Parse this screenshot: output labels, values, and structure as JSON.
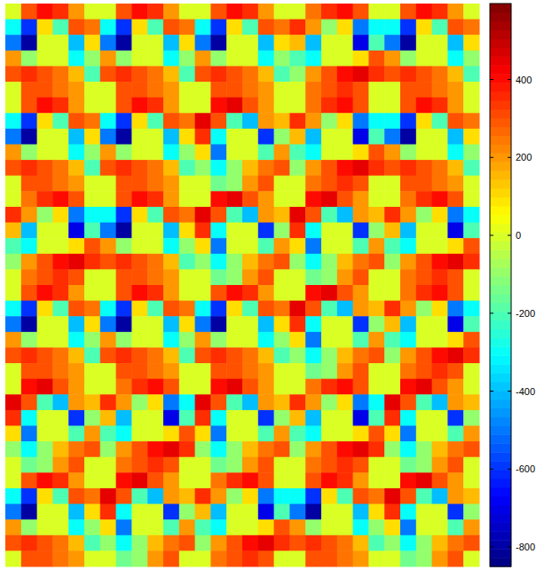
{
  "chart_data": {
    "type": "heatmap",
    "tick_labels": false,
    "cells": [
      [
        0,
        300,
        400,
        350,
        200,
        0,
        0,
        300,
        400,
        350,
        200,
        0,
        0,
        300,
        400,
        350,
        200,
        0,
        0,
        250,
        350,
        400,
        300,
        0,
        0,
        300,
        400,
        350,
        200,
        0
      ],
      [
        -300,
        -600,
        100,
        -200,
        300,
        250,
        -300,
        -600,
        100,
        -200,
        300,
        250,
        -300,
        -600,
        100,
        -200,
        300,
        250,
        350,
        200,
        -100,
        100,
        -500,
        -300,
        -300,
        -600,
        100,
        -200,
        300,
        250
      ],
      [
        -500,
        -800,
        0,
        0,
        -400,
        100,
        -500,
        -800,
        0,
        0,
        -400,
        100,
        -500,
        -800,
        0,
        0,
        -400,
        100,
        150,
        -400,
        0,
        0,
        -700,
        -200,
        -500,
        -800,
        0,
        0,
        -400,
        100
      ],
      [
        200,
        -100,
        0,
        0,
        -300,
        -100,
        200,
        -100,
        0,
        0,
        -300,
        -100,
        200,
        -100,
        0,
        0,
        -300,
        -100,
        -200,
        -300,
        0,
        0,
        100,
        300,
        200,
        -100,
        0,
        0,
        -300,
        -100
      ],
      [
        300,
        350,
        300,
        250,
        150,
        -200,
        300,
        350,
        300,
        250,
        150,
        -200,
        300,
        350,
        300,
        250,
        150,
        -200,
        -100,
        200,
        300,
        400,
        450,
        350,
        300,
        350,
        300,
        250,
        150,
        -200
      ],
      [
        0,
        300,
        300,
        250,
        200,
        0,
        0,
        300,
        300,
        250,
        200,
        0,
        0,
        300,
        300,
        250,
        200,
        0,
        0,
        250,
        300,
        350,
        300,
        0,
        0,
        300,
        300,
        250,
        200,
        0
      ],
      [
        0,
        300,
        400,
        350,
        200,
        0,
        0,
        300,
        400,
        350,
        200,
        0,
        0,
        400,
        450,
        300,
        200,
        0,
        0,
        250,
        350,
        400,
        300,
        0,
        0,
        300,
        400,
        350,
        200,
        0
      ],
      [
        -300,
        -600,
        100,
        -200,
        300,
        250,
        -300,
        -600,
        100,
        -200,
        300,
        250,
        450,
        300,
        -200,
        -400,
        200,
        150,
        350,
        200,
        -100,
        100,
        -500,
        -300,
        -300,
        -600,
        100,
        -200,
        300,
        250
      ],
      [
        -500,
        -800,
        0,
        0,
        -400,
        100,
        -500,
        -800,
        0,
        0,
        -400,
        100,
        350,
        -300,
        0,
        0,
        -600,
        -100,
        150,
        -400,
        0,
        0,
        -700,
        -200,
        -500,
        -800,
        0,
        0,
        -400,
        100
      ],
      [
        200,
        -100,
        0,
        0,
        -300,
        -100,
        200,
        -100,
        0,
        0,
        -300,
        -100,
        100,
        -500,
        0,
        0,
        -200,
        200,
        -200,
        -300,
        0,
        0,
        100,
        300,
        200,
        -100,
        0,
        0,
        -300,
        -100
      ],
      [
        300,
        350,
        300,
        250,
        150,
        -200,
        300,
        350,
        300,
        250,
        150,
        -200,
        -100,
        -300,
        -100,
        150,
        250,
        300,
        -100,
        200,
        300,
        400,
        450,
        350,
        300,
        350,
        300,
        250,
        150,
        -200
      ],
      [
        0,
        300,
        300,
        250,
        200,
        0,
        0,
        300,
        300,
        250,
        200,
        0,
        0,
        -150,
        -100,
        200,
        300,
        0,
        0,
        250,
        300,
        350,
        300,
        0,
        0,
        300,
        300,
        250,
        200,
        0
      ],
      [
        0,
        250,
        350,
        400,
        300,
        0,
        0,
        300,
        400,
        350,
        200,
        0,
        0,
        400,
        450,
        300,
        200,
        0,
        0,
        400,
        450,
        300,
        200,
        0,
        0,
        250,
        350,
        400,
        300,
        0
      ],
      [
        350,
        200,
        -100,
        100,
        -500,
        -300,
        -300,
        -600,
        100,
        -200,
        300,
        250,
        450,
        300,
        -200,
        -400,
        200,
        150,
        450,
        300,
        -200,
        -400,
        200,
        150,
        350,
        200,
        -100,
        100,
        -500,
        -300
      ],
      [
        150,
        -400,
        0,
        0,
        -700,
        -200,
        -500,
        -800,
        0,
        0,
        -400,
        100,
        350,
        -300,
        0,
        0,
        -600,
        -100,
        350,
        -300,
        0,
        0,
        -600,
        -100,
        150,
        -400,
        0,
        0,
        -700,
        -200
      ],
      [
        -200,
        -300,
        0,
        0,
        100,
        300,
        200,
        -100,
        0,
        0,
        -300,
        -100,
        100,
        -500,
        0,
        0,
        -200,
        200,
        100,
        -500,
        0,
        0,
        -200,
        200,
        -200,
        -300,
        0,
        0,
        100,
        300
      ],
      [
        -100,
        200,
        300,
        400,
        450,
        350,
        300,
        350,
        300,
        250,
        150,
        -200,
        -100,
        -300,
        -100,
        150,
        250,
        300,
        -100,
        -300,
        -100,
        150,
        250,
        300,
        -100,
        200,
        300,
        400,
        450,
        350
      ],
      [
        0,
        250,
        300,
        350,
        300,
        0,
        0,
        300,
        300,
        250,
        200,
        0,
        0,
        -150,
        -100,
        200,
        300,
        0,
        0,
        -150,
        -100,
        200,
        300,
        0,
        0,
        250,
        300,
        350,
        300,
        0
      ],
      [
        0,
        300,
        400,
        350,
        200,
        0,
        0,
        300,
        400,
        350,
        200,
        0,
        0,
        300,
        400,
        350,
        200,
        0,
        0,
        400,
        450,
        300,
        200,
        0,
        0,
        250,
        350,
        400,
        300,
        0
      ],
      [
        -300,
        -600,
        100,
        -200,
        300,
        250,
        -300,
        -600,
        100,
        -200,
        300,
        250,
        -300,
        -600,
        100,
        -200,
        300,
        250,
        450,
        300,
        -200,
        -400,
        200,
        150,
        350,
        200,
        -100,
        100,
        -500,
        -300
      ],
      [
        -500,
        -800,
        0,
        0,
        -400,
        100,
        -500,
        -800,
        0,
        0,
        -400,
        100,
        -500,
        -800,
        0,
        0,
        -400,
        100,
        350,
        -300,
        0,
        0,
        -600,
        -100,
        150,
        -400,
        0,
        0,
        -700,
        -200
      ],
      [
        200,
        -100,
        0,
        0,
        -300,
        -100,
        200,
        -100,
        0,
        0,
        -300,
        -100,
        200,
        -100,
        0,
        0,
        -300,
        -100,
        100,
        -500,
        0,
        0,
        -200,
        200,
        -200,
        -300,
        0,
        0,
        100,
        300
      ],
      [
        300,
        350,
        300,
        250,
        150,
        -200,
        300,
        350,
        300,
        250,
        150,
        -200,
        300,
        350,
        300,
        250,
        150,
        -200,
        -100,
        -300,
        -100,
        150,
        250,
        300,
        -100,
        200,
        300,
        400,
        450,
        350
      ],
      [
        0,
        300,
        300,
        250,
        200,
        0,
        0,
        300,
        300,
        250,
        200,
        0,
        0,
        300,
        300,
        250,
        200,
        0,
        0,
        -150,
        -100,
        200,
        300,
        0,
        0,
        250,
        300,
        350,
        300,
        0
      ],
      [
        0,
        400,
        450,
        300,
        200,
        0,
        0,
        250,
        350,
        400,
        300,
        0,
        0,
        400,
        450,
        300,
        200,
        0,
        0,
        250,
        350,
        400,
        300,
        0,
        0,
        400,
        450,
        300,
        200,
        0
      ],
      [
        450,
        300,
        -200,
        -400,
        200,
        150,
        350,
        200,
        -100,
        100,
        -500,
        -300,
        450,
        300,
        -200,
        -400,
        200,
        150,
        350,
        200,
        -100,
        100,
        -500,
        -300,
        450,
        300,
        -200,
        -400,
        200,
        150
      ],
      [
        350,
        -300,
        0,
        0,
        -600,
        -100,
        150,
        -400,
        0,
        0,
        -700,
        -200,
        350,
        -300,
        0,
        0,
        -600,
        -100,
        150,
        -400,
        0,
        0,
        -700,
        -200,
        350,
        -300,
        0,
        0,
        -600,
        -100
      ],
      [
        100,
        -500,
        0,
        0,
        -200,
        200,
        -200,
        -300,
        0,
        0,
        100,
        300,
        100,
        -500,
        0,
        0,
        -200,
        200,
        -200,
        -300,
        0,
        0,
        100,
        300,
        100,
        -500,
        0,
        0,
        -200,
        200
      ],
      [
        -100,
        -300,
        -100,
        150,
        250,
        300,
        -100,
        200,
        300,
        400,
        450,
        350,
        -100,
        -300,
        -100,
        150,
        250,
        300,
        -100,
        200,
        300,
        400,
        450,
        350,
        -100,
        -300,
        -100,
        150,
        250,
        300
      ],
      [
        0,
        -150,
        -100,
        200,
        300,
        0,
        0,
        250,
        300,
        350,
        300,
        0,
        0,
        -150,
        -100,
        200,
        300,
        0,
        0,
        250,
        300,
        350,
        300,
        0,
        0,
        -150,
        -100,
        200,
        300,
        0
      ],
      [
        0,
        300,
        400,
        350,
        200,
        0,
        0,
        400,
        450,
        300,
        200,
        0,
        0,
        250,
        350,
        400,
        300,
        0,
        0,
        300,
        400,
        350,
        200,
        0,
        0,
        400,
        450,
        300,
        200,
        0
      ],
      [
        -300,
        -600,
        100,
        -200,
        300,
        250,
        450,
        300,
        -200,
        -400,
        200,
        150,
        350,
        200,
        -100,
        100,
        -500,
        -300,
        -300,
        -600,
        100,
        -200,
        300,
        250,
        450,
        300,
        -200,
        -400,
        200,
        150
      ],
      [
        -500,
        -800,
        0,
        0,
        -400,
        100,
        350,
        -300,
        0,
        0,
        -600,
        -100,
        150,
        -400,
        0,
        0,
        -700,
        -200,
        -500,
        -800,
        0,
        0,
        -400,
        100,
        350,
        -300,
        0,
        0,
        -600,
        -100
      ],
      [
        200,
        -100,
        0,
        0,
        -300,
        -100,
        100,
        -500,
        0,
        0,
        -200,
        200,
        -200,
        -300,
        0,
        0,
        100,
        300,
        200,
        -100,
        0,
        0,
        -300,
        -100,
        100,
        -500,
        0,
        0,
        -200,
        200
      ],
      [
        300,
        350,
        300,
        250,
        150,
        -200,
        -100,
        -300,
        -100,
        150,
        250,
        300,
        -100,
        200,
        300,
        400,
        450,
        350,
        300,
        350,
        300,
        250,
        150,
        -200,
        -100,
        -300,
        -100,
        150,
        250,
        300
      ],
      [
        0,
        300,
        300,
        250,
        200,
        0,
        0,
        -150,
        -100,
        200,
        300,
        0,
        0,
        250,
        300,
        350,
        300,
        0,
        0,
        300,
        300,
        250,
        200,
        0,
        0,
        -150,
        -100,
        200,
        300,
        0
      ]
    ],
    "colorbar": {
      "range": [
        -850,
        595
      ],
      "ticks": [
        -800,
        -600,
        -400,
        -200,
        0,
        200,
        400
      ]
    }
  }
}
